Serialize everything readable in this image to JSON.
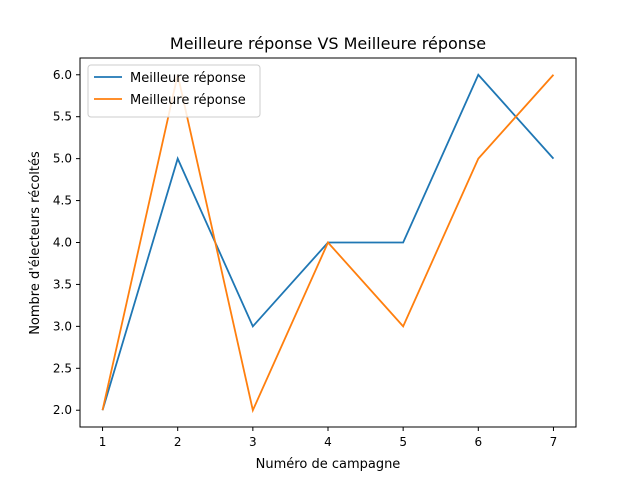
{
  "chart_data": {
    "type": "line",
    "title": "Meilleure réponse VS Meilleure réponse",
    "xlabel": "Numéro de campagne",
    "ylabel": "Nombre d'électeurs récoltés",
    "x": [
      1,
      2,
      3,
      4,
      5,
      6,
      7
    ],
    "xticks": [
      "1",
      "2",
      "3",
      "4",
      "5",
      "6",
      "7"
    ],
    "yticks": [
      "2.0",
      "2.5",
      "3.0",
      "3.5",
      "4.0",
      "4.5",
      "5.0",
      "5.5",
      "6.0"
    ],
    "xlim": [
      0.7,
      7.3
    ],
    "ylim": [
      1.8,
      6.2
    ],
    "grid": false,
    "legend_position": "top-left",
    "series": [
      {
        "name": "Meilleure réponse",
        "color": "#1f77b4",
        "values": [
          2,
          5,
          3,
          4,
          4,
          6,
          5
        ]
      },
      {
        "name": "Meilleure réponse",
        "color": "#ff7f0e",
        "values": [
          2,
          6,
          2,
          4,
          3,
          5,
          6
        ]
      }
    ]
  }
}
